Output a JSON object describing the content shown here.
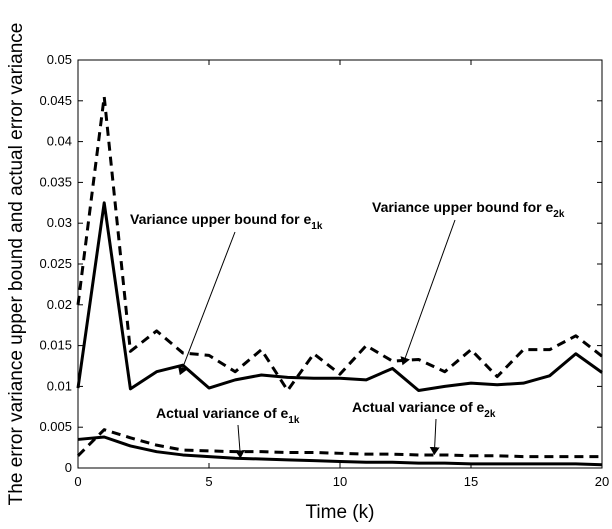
{
  "chart_data": {
    "type": "line",
    "xlabel": "Time (k)",
    "ylabel": "The error variance upper bound and actual error variance",
    "xlim": [
      0,
      20
    ],
    "ylim": [
      0,
      0.05
    ],
    "xticks": [
      "0",
      "5",
      "10",
      "15",
      "20"
    ],
    "yticks": [
      "0",
      "0.005",
      "0.01",
      "0.015",
      "0.02",
      "0.025",
      "0.03",
      "0.035",
      "0.04",
      "0.045",
      "0.05"
    ],
    "grid": false,
    "x": [
      0,
      1,
      2,
      3,
      4,
      5,
      6,
      7,
      8,
      9,
      10,
      11,
      12,
      13,
      14,
      15,
      16,
      17,
      18,
      19,
      20
    ],
    "series": [
      {
        "name": "Variance upper bound for e1k",
        "style": "solid",
        "values": [
          0.0098,
          0.0325,
          0.0097,
          0.0118,
          0.0126,
          0.0098,
          0.0108,
          0.0114,
          0.0111,
          0.011,
          0.011,
          0.0108,
          0.0122,
          0.0095,
          0.01,
          0.0104,
          0.0102,
          0.0104,
          0.0113,
          0.014,
          0.0117
        ]
      },
      {
        "name": "Variance upper bound for e2k",
        "style": "dashed",
        "values": [
          0.02,
          0.0455,
          0.0143,
          0.0168,
          0.0141,
          0.0138,
          0.0118,
          0.0145,
          0.0095,
          0.014,
          0.0115,
          0.015,
          0.0131,
          0.0133,
          0.0118,
          0.0145,
          0.0112,
          0.0145,
          0.0145,
          0.0162,
          0.0137
        ]
      },
      {
        "name": "Actual variance of e1k",
        "style": "solid",
        "values": [
          0.0035,
          0.0038,
          0.0027,
          0.002,
          0.0016,
          0.0014,
          0.0012,
          0.0011,
          0.001,
          0.0009,
          0.0008,
          0.0007,
          0.0007,
          0.0006,
          0.0006,
          0.0005,
          0.0005,
          0.0005,
          0.0005,
          0.0005,
          0.0004
        ]
      },
      {
        "name": "Actual variance of e2k",
        "style": "dashed",
        "values": [
          0.0015,
          0.0047,
          0.0037,
          0.0028,
          0.0022,
          0.0021,
          0.002,
          0.002,
          0.0019,
          0.0019,
          0.0018,
          0.0017,
          0.0017,
          0.0016,
          0.0016,
          0.0015,
          0.0015,
          0.0014,
          0.0014,
          0.0014,
          0.0014
        ]
      }
    ],
    "annotations": [
      {
        "text": "Variance upper bound for e",
        "sub": "1k",
        "target_x": 3.9,
        "target_y": 0.0115
      },
      {
        "text": "Variance upper bound for e",
        "sub": "2k",
        "target_x": 12.4,
        "target_y": 0.0127
      },
      {
        "text": "Actual variance of e",
        "sub": "1k",
        "target_x": 6.2,
        "target_y": 0.0013
      },
      {
        "text": "Actual variance of e",
        "sub": "2k",
        "target_x": 13.6,
        "target_y": 0.0017
      }
    ]
  }
}
